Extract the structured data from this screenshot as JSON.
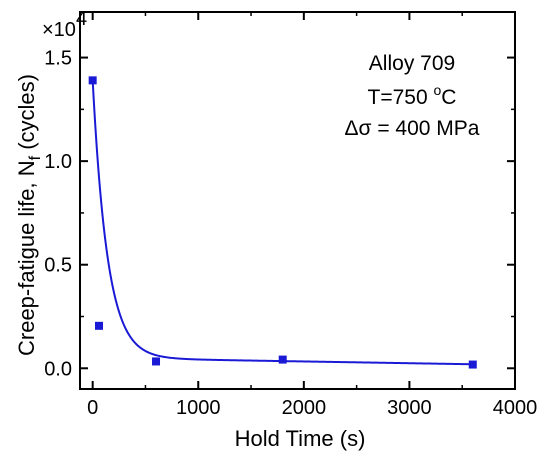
{
  "chart_data": {
    "type": "scatter",
    "xlabel": "Hold Time (s)",
    "ylabel_main": "Creep-fatigue life, N",
    "ylabel_sub": "f",
    "ylabel_unit": " (cycles)",
    "y_multiplier": "×10",
    "y_multiplier_exp": "4",
    "xlim": [
      -120,
      4000
    ],
    "ylim": [
      -0.1,
      1.72
    ],
    "x_ticks": [
      0,
      1000,
      2000,
      3000,
      4000
    ],
    "x_tick_labels": [
      "0",
      "1000",
      "2000",
      "3000",
      "4000"
    ],
    "y_ticks": [
      0.0,
      0.5,
      1.0,
      1.5
    ],
    "y_tick_labels": [
      "0.0",
      "0.5",
      "1.0",
      "1.5"
    ],
    "series": [
      {
        "x": [
          0,
          60,
          600,
          1800,
          3600
        ],
        "y": [
          1.39,
          0.205,
          0.033,
          0.042,
          0.018
        ],
        "color": "#1a1ad6",
        "marker": "square"
      }
    ],
    "fit_color": "#1a1ad6",
    "annotations": {
      "line1": "Alloy 709",
      "line2_prefix": "T=750 ",
      "line2_deg": "o",
      "line2_suffix": "C",
      "line3": "Δσ = 400 MPa"
    },
    "grid": false,
    "legend": "none"
  }
}
